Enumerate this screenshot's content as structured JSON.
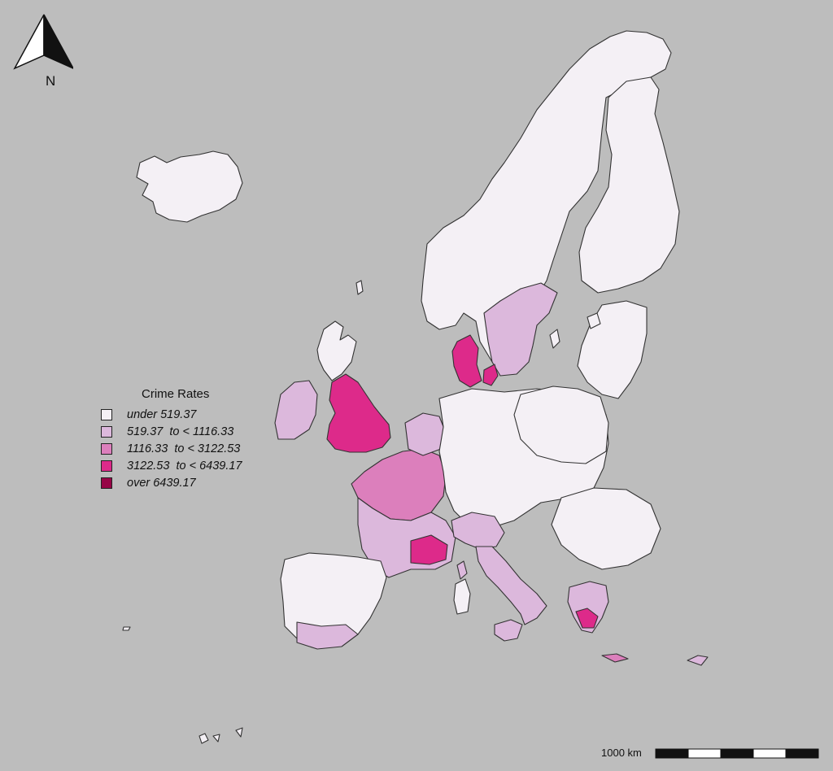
{
  "map": {
    "legend": {
      "title": "Crime Rates",
      "classes": [
        {
          "label": "under 519.37",
          "color": "#f4f0f5"
        },
        {
          "label": "519.37  to < 1116.33",
          "color": "#dcb8dc"
        },
        {
          "label": "1116.33  to < 3122.53",
          "color": "#dc7fbc"
        },
        {
          "label": "3122.53  to < 6439.17",
          "color": "#dd2a8a"
        },
        {
          "label": "over 6439.17",
          "color": "#970546"
        }
      ]
    },
    "north_arrow": {
      "label": "N"
    },
    "scale_bar": {
      "label": "1000 km",
      "segments": 5
    },
    "colors": {
      "background": "#bdbdbd",
      "boundary": "#333333"
    }
  }
}
